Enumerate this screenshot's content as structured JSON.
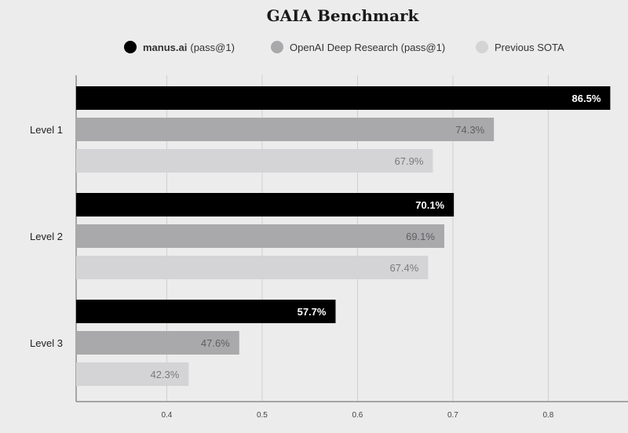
{
  "chart_data": {
    "type": "bar",
    "orientation": "horizontal",
    "title": "GAIA Benchmark",
    "categories": [
      "Level 1",
      "Level 2",
      "Level 3"
    ],
    "series": [
      {
        "name": "manus.ai",
        "name_suffix": "(pass@1)",
        "color": "#000000",
        "label_color": "#ffffff",
        "values": [
          86.5,
          70.1,
          57.7
        ],
        "labels": [
          "86.5%",
          "70.1%",
          "57.7%"
        ]
      },
      {
        "name": "OpenAI Deep Research (pass@1)",
        "color": "#a9a9ab",
        "label_color": "#5f5f63",
        "values": [
          74.3,
          69.1,
          47.6
        ],
        "labels": [
          "74.3%",
          "69.1%",
          "47.6%"
        ]
      },
      {
        "name": "Previous SOTA",
        "color": "#d4d4d6",
        "label_color": "#7a7a7e",
        "values": [
          67.9,
          67.4,
          42.3
        ],
        "labels": [
          "67.9%",
          "67.4%",
          "42.3%"
        ]
      }
    ],
    "x_ticks": [
      0.4,
      0.5,
      0.6,
      0.7,
      0.8
    ],
    "x_tick_labels": [
      "0.4",
      "0.5",
      "0.6",
      "0.7",
      "0.8"
    ],
    "xlim": [
      0.305,
      0.88
    ],
    "grid": "vertical",
    "legend": "top-center"
  }
}
